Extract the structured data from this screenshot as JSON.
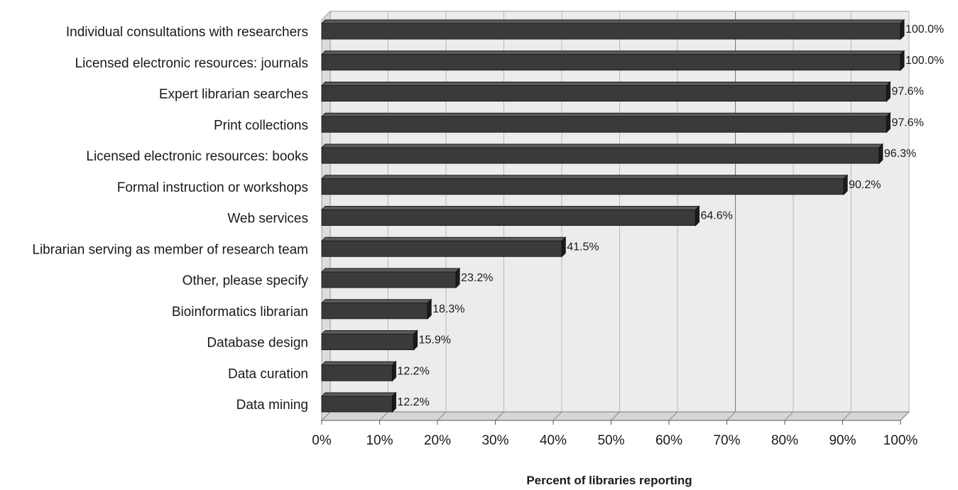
{
  "chart_data": {
    "type": "bar",
    "orientation": "horizontal",
    "categories": [
      "Individual consultations with researchers",
      "Licensed electronic resources: journals",
      "Expert librarian searches",
      "Print collections",
      "Licensed electronic resources: books",
      "Formal instruction or workshops",
      "Web services",
      "Librarian serving as member of research team",
      "Other, please specify",
      "Bioinformatics librarian",
      "Database design",
      "Data curation",
      "Data mining"
    ],
    "values": [
      100.0,
      100.0,
      97.6,
      97.6,
      96.3,
      90.2,
      64.6,
      41.5,
      23.2,
      18.3,
      15.9,
      12.2,
      12.2
    ],
    "value_labels": [
      "100.0%",
      "100.0%",
      "97.6%",
      "97.6%",
      "96.3%",
      "90.2%",
      "64.6%",
      "41.5%",
      "23.2%",
      "18.3%",
      "15.9%",
      "12.2%",
      "12.2%"
    ],
    "x_ticks": [
      "0%",
      "10%",
      "20%",
      "30%",
      "40%",
      "50%",
      "60%",
      "70%",
      "80%",
      "90%",
      "100%"
    ],
    "xlim": [
      0,
      100
    ],
    "xlabel": "Percent of libraries reporting",
    "ylabel": "",
    "title": "",
    "grid": true,
    "style": "3d",
    "bar_color": "#3a3a3a",
    "plot_background": "#ececec"
  }
}
